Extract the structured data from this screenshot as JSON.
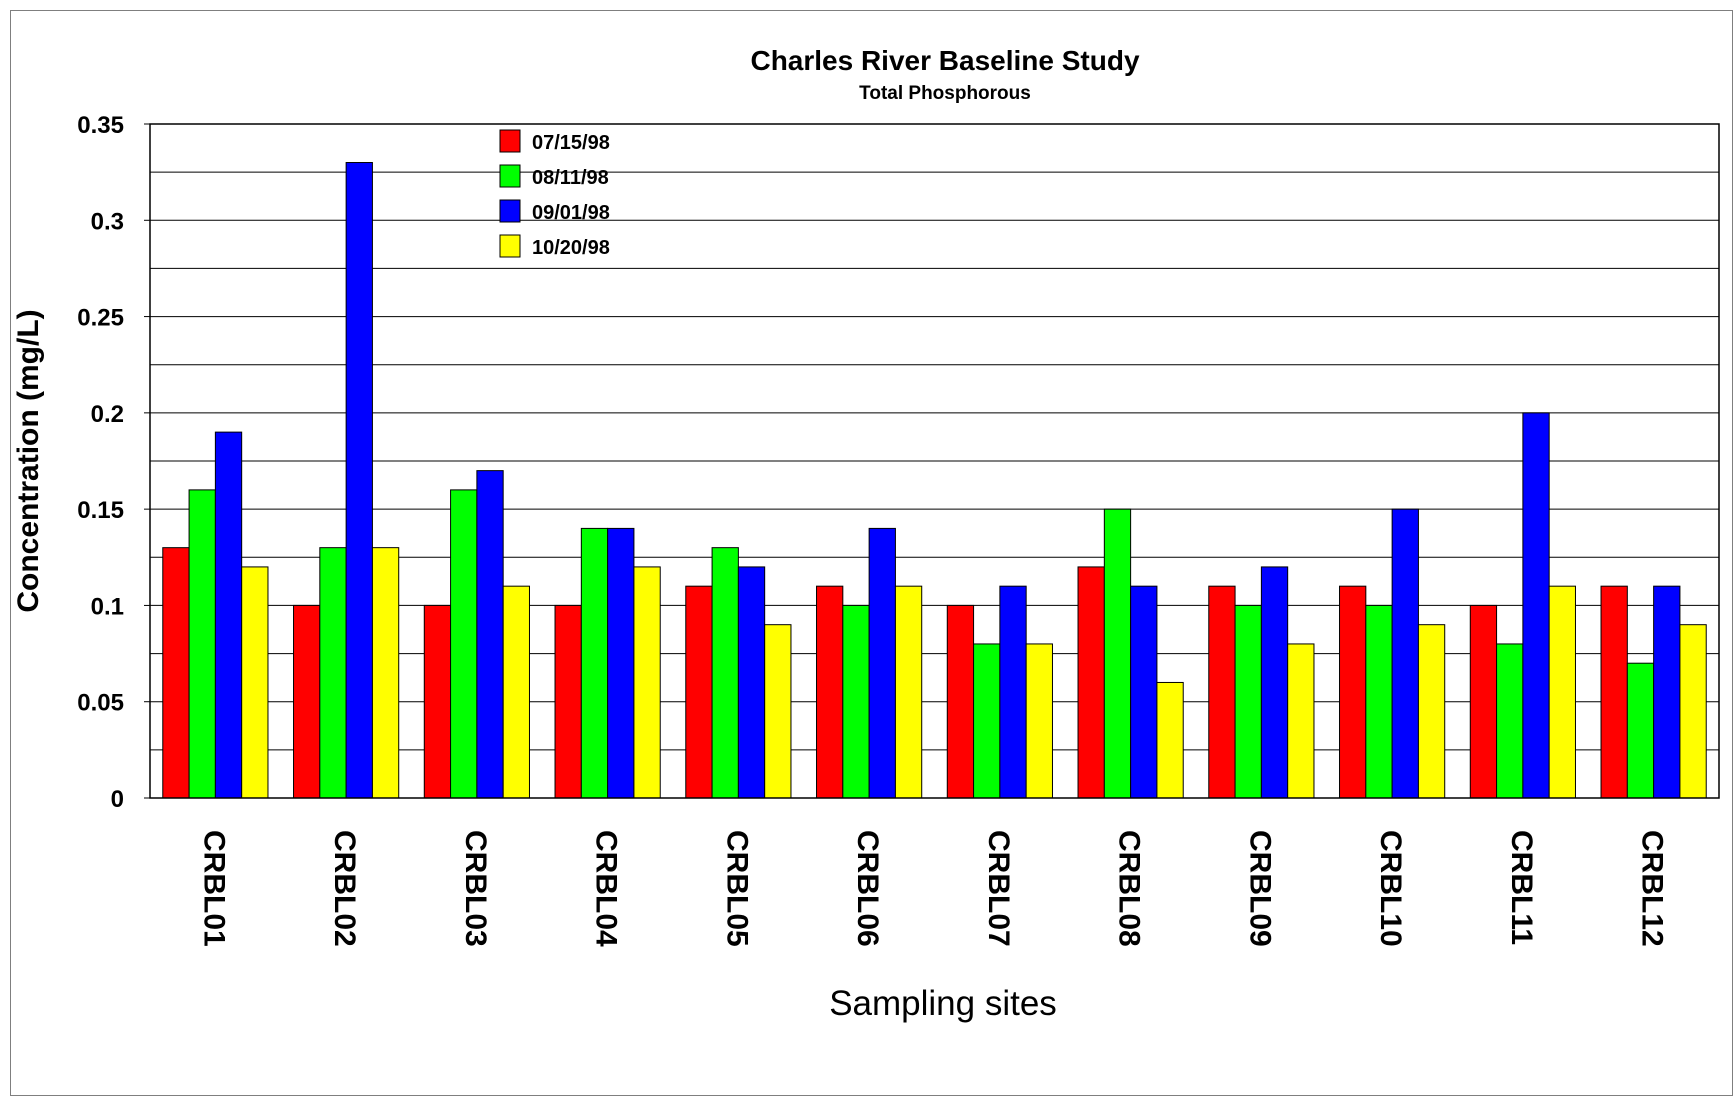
{
  "chart_data": {
    "type": "bar",
    "title": "Charles River Baseline Study",
    "subtitle": "Total Phosphorous",
    "xlabel": "Sampling sites",
    "ylabel": "Concentration (mg/L)",
    "ylim": [
      0,
      0.35
    ],
    "y_ticks": [
      "0",
      "0.05",
      "0.1",
      "0.15",
      "0.2",
      "0.25",
      "0.3",
      "0.35"
    ],
    "grid": true,
    "legend_position": "top-left",
    "categories": [
      "CRBL01",
      "CRBL02",
      "CRBL03",
      "CRBL04",
      "CRBL05",
      "CRBL06",
      "CRBL07",
      "CRBL08",
      "CRBL09",
      "CRBL10",
      "CRBL11",
      "CRBL12"
    ],
    "series": [
      {
        "name": "07/15/98",
        "color": "#ff0000",
        "values": [
          0.13,
          0.1,
          0.1,
          0.1,
          0.11,
          0.11,
          0.1,
          0.12,
          0.11,
          0.11,
          0.1,
          0.11
        ]
      },
      {
        "name": "08/11/98",
        "color": "#00ff00",
        "values": [
          0.16,
          0.13,
          0.16,
          0.14,
          0.13,
          0.1,
          0.08,
          0.15,
          0.1,
          0.1,
          0.08,
          0.07
        ]
      },
      {
        "name": "09/01/98",
        "color": "#0000ff",
        "values": [
          0.19,
          0.33,
          0.17,
          0.14,
          0.12,
          0.14,
          0.11,
          0.11,
          0.12,
          0.15,
          0.2,
          0.11
        ]
      },
      {
        "name": "10/20/98",
        "color": "#ffff00",
        "values": [
          0.12,
          0.13,
          0.11,
          0.12,
          0.09,
          0.11,
          0.08,
          0.06,
          0.08,
          0.09,
          0.11,
          0.09
        ]
      }
    ]
  }
}
